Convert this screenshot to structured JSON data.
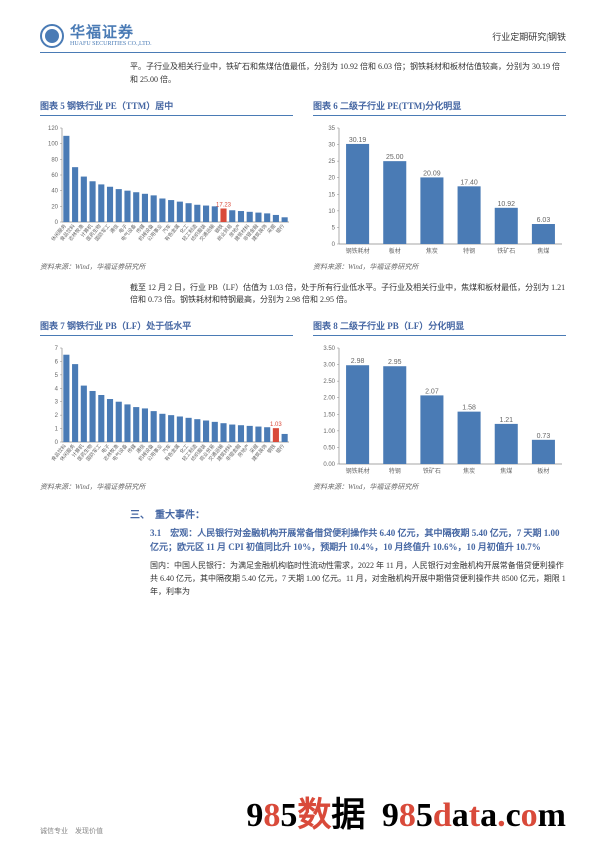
{
  "header": {
    "logo_cn": "华福证券",
    "logo_en": "HUAFU SECURITIES CO.,LTD.",
    "right": "行业定期研究|钢铁"
  },
  "intro": "平。子行业及相关行业中，铁矿石和焦煤估值最低，分别为 10.92 倍和 6.03 倍；钢铁耗材和板材估值较高，分别为 30.19 倍和 25.00 倍。",
  "chart5": {
    "title": "图表 5 钢铁行业 PE（TTM）居中",
    "type": "bar",
    "categories": [
      "休闲服务",
      "食品饮料",
      "农林牧渔",
      "计算机",
      "医药生物",
      "国防军工",
      "通信",
      "电子",
      "电气设备",
      "传媒",
      "机械设备",
      "公用事业",
      "汽车",
      "有色金属",
      "化工",
      "轻工制造",
      "纺织服装",
      "交通运输",
      "钢铁",
      "商业贸易",
      "房地产",
      "建筑材料",
      "非银金融",
      "建筑装饰",
      "采掘",
      "银行"
    ],
    "values": [
      110,
      70,
      58,
      52,
      48,
      45,
      42,
      40,
      38,
      36,
      34,
      30,
      28,
      26,
      24,
      22,
      21,
      20,
      17.23,
      15,
      14,
      13,
      12,
      11,
      9,
      6
    ],
    "highlight_index": 18,
    "highlight_label": "17.23",
    "ymax": 120,
    "ytick_step": 20,
    "bar_color": "#4a7bb5",
    "highlight_color": "#d94a3a",
    "axis_color": "#888",
    "text_color": "#666",
    "label_fontsize": 5,
    "tick_fontsize": 6,
    "bg": "#ffffff"
  },
  "chart6": {
    "title": "图表 6 二级子行业 PE(TTM)分化明显",
    "type": "bar",
    "categories": [
      "钢铁耗材",
      "板材",
      "焦炭",
      "特钢",
      "铁矿石",
      "焦煤"
    ],
    "values": [
      30.19,
      25.0,
      20.09,
      17.4,
      10.92,
      6.03
    ],
    "ymax": 35,
    "ytick_step": 5,
    "bar_color": "#4a7bb5",
    "axis_color": "#888",
    "text_color": "#666",
    "label_fontsize": 6,
    "tick_fontsize": 6,
    "bg": "#ffffff"
  },
  "mid_text": "截至 12 月 2 日，行业 PB（LF）估值为 1.03 倍，处于所有行业低水平。子行业及相关行业中，焦煤和板材最低，分别为 1.21 倍和 0.73 倍。钢铁耗材和特钢最高，分别为 2.98 倍和 2.95 倍。",
  "chart7": {
    "title": "图表 7 钢铁行业 PB（LF）处于低水平",
    "type": "bar",
    "categories": [
      "食品饮料",
      "休闲服务",
      "计算机",
      "医药生物",
      "国防军工",
      "电子",
      "农林牧渔",
      "电气设备",
      "传媒",
      "通信",
      "机械设备",
      "公用事业",
      "汽车",
      "有色金属",
      "化工",
      "轻工制造",
      "纺织服装",
      "商业贸易",
      "交通运输",
      "建筑材料",
      "非银金融",
      "房地产",
      "采掘",
      "建筑装饰",
      "钢铁",
      "银行"
    ],
    "values": [
      6.5,
      5.8,
      4.2,
      3.8,
      3.5,
      3.2,
      3.0,
      2.8,
      2.6,
      2.5,
      2.3,
      2.1,
      2.0,
      1.9,
      1.8,
      1.7,
      1.6,
      1.5,
      1.4,
      1.3,
      1.25,
      1.2,
      1.15,
      1.1,
      1.03,
      0.6
    ],
    "highlight_index": 24,
    "highlight_label": "1.03",
    "ymax": 7,
    "ytick_step": 1,
    "bar_color": "#4a7bb5",
    "highlight_color": "#d94a3a",
    "axis_color": "#888",
    "text_color": "#666",
    "label_fontsize": 5,
    "tick_fontsize": 6,
    "bg": "#ffffff"
  },
  "chart8": {
    "title": "图表 8 二级子行业 PB（LF）分化明显",
    "type": "bar",
    "categories": [
      "钢铁耗材",
      "特钢",
      "铁矿石",
      "焦炭",
      "焦煤",
      "板材"
    ],
    "values": [
      2.98,
      2.95,
      2.07,
      1.58,
      1.21,
      0.73
    ],
    "ymax": 3.5,
    "ytick_step": 0.5,
    "bar_color": "#4a7bb5",
    "axis_color": "#888",
    "text_color": "#666",
    "label_fontsize": 6,
    "tick_fontsize": 6,
    "bg": "#ffffff"
  },
  "source": "资料来源：Wind，华福证券研究所",
  "section3": {
    "head": "三、　重大事件：",
    "sub": "3.1　宏观：人民银行对金融机构开展常备借贷便利操作共 6.40 亿元，其中隔夜期 5.40 亿元，7 天期 1.00 亿元；欧元区 11 月 CPI 初值同比升 10%，预期升 10.4%，10 月终值升 10.6%，10 月初值升 10.7%",
    "body": "国内：中国人民银行：为满足金融机构临时性流动性需求，2022 年 11 月，人民银行对金融机构开展常备借贷便利操作共 6.40 亿元，其中隔夜期 5.40 亿元，7 天期 1.00 亿元。11 月，对金融机构开展中期借贷便利操作共 8500 亿元，期限 1 年，利率为"
  },
  "footer": {
    "left": "诚信专业　发现价值",
    "watermark": "985数据 985data.com",
    "wm_color1": "#d94a3a",
    "wm_color2": "#000000"
  }
}
